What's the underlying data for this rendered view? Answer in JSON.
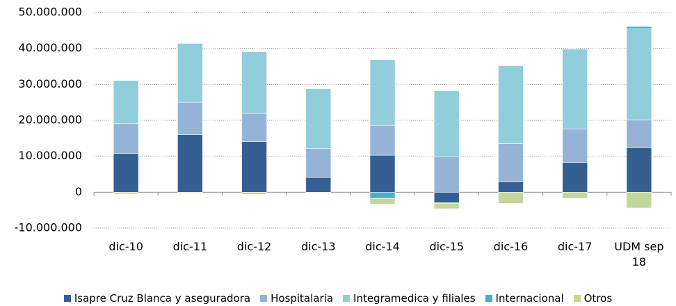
{
  "chart_data": {
    "type": "bar",
    "stacked": true,
    "categories": [
      "dic-10",
      "dic-11",
      "dic-12",
      "dic-13",
      "dic-14",
      "dic-15",
      "dic-16",
      "dic-17",
      "UDM sep 18"
    ],
    "series": [
      {
        "name": "Isapre Cruz Blanca y aseguradora",
        "color": "#355f91",
        "values": [
          10800000,
          16000000,
          14100000,
          4100000,
          10300000,
          -2900000,
          2900000,
          8300000,
          12400000
        ]
      },
      {
        "name": "Hospitalaria",
        "color": "#95b3d7",
        "values": [
          8300000,
          9000000,
          7800000,
          8100000,
          8300000,
          9900000,
          10600000,
          9300000,
          7700000
        ]
      },
      {
        "name": "Integramedica y filiales",
        "color": "#92cddc",
        "values": [
          12000000,
          16400000,
          17200000,
          16600000,
          18300000,
          18300000,
          21700000,
          22200000,
          25400000
        ]
      },
      {
        "name": "Internacional",
        "color": "#4bacc6",
        "values": [
          0,
          0,
          0,
          0,
          -1700000,
          -200000,
          0,
          0,
          600000
        ]
      },
      {
        "name": "Otros",
        "color": "#c3d69b",
        "values": [
          -500000,
          -300000,
          -600000,
          -200000,
          -1600000,
          -1500000,
          -3100000,
          -1700000,
          -4400000
        ]
      }
    ],
    "ylim": [
      -10000000,
      50000000
    ],
    "yticks": [
      {
        "value": -10000000,
        "label": "-10.000.000"
      },
      0,
      {
        "value": 10000000,
        "label": "10.000.000"
      },
      {
        "value": 20000000,
        "label": "20.000.000"
      },
      {
        "value": 30000000,
        "label": "30.000.000"
      },
      {
        "value": 40000000,
        "label": "40.000.000"
      },
      {
        "value": 50000000,
        "label": "50.000.000"
      }
    ],
    "grid": true,
    "legend": "bottom"
  }
}
